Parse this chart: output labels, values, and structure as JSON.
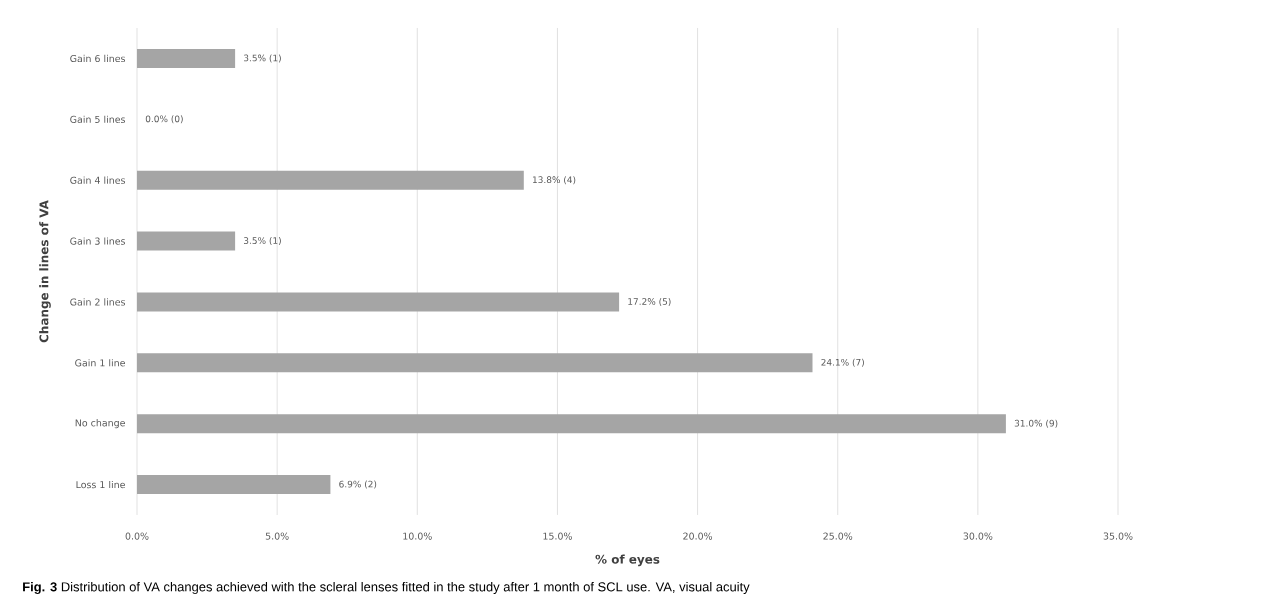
{
  "chart_data": {
    "type": "bar",
    "orientation": "horizontal",
    "xlabel": "% of eyes",
    "ylabel": "Change in lines of VA",
    "categories": [
      "Gain 6 lines",
      "Gain 5 lines",
      "Gain 4 lines",
      "Gain 3 lines",
      "Gain 2 lines",
      "Gain 1 line",
      "No change",
      "Loss 1 line"
    ],
    "values": [
      3.5,
      0.0,
      13.8,
      3.5,
      17.2,
      24.1,
      31.0,
      6.9
    ],
    "value_labels": [
      "3.5% (1)",
      "0.0% (0)",
      "13.8% (4)",
      "3.5% (1)",
      "17.2% (5)",
      "24.1% (7)",
      "31.0% (9)",
      "6.9% (2)"
    ],
    "color": "#a5a5a5",
    "xlim": [
      0,
      35
    ],
    "xticks": [
      {
        "value": 0,
        "label": "0.0%"
      },
      {
        "value": 5,
        "label": "5.0%"
      },
      {
        "value": 10,
        "label": "10.0%"
      },
      {
        "value": 15,
        "label": "15.0%"
      },
      {
        "value": 20,
        "label": "20.0%"
      },
      {
        "value": 25,
        "label": "25.0%"
      },
      {
        "value": 30,
        "label": "30.0%"
      },
      {
        "value": 35,
        "label": "35.0%"
      }
    ],
    "grid": "x",
    "annotations": [
      "**Fig. 3**  Distribution of VA changes achieved with the scleral lenses fitted in the study after 1 month of SCL use. VA, visual acuity"
    ]
  }
}
